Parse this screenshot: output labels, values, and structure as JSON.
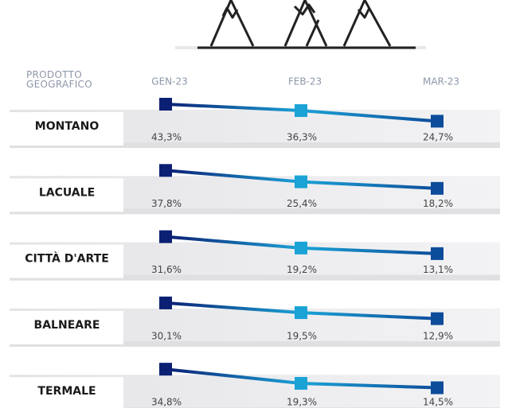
{
  "chart_data": {
    "type": "line",
    "row_header": "PRODOTTO GEOGRAFICO",
    "categories": [
      "GEN-23",
      "FEB-23",
      "MAR-23"
    ],
    "marker_colors": [
      "#0b1f73",
      "#1ba3d6",
      "#0d4c9a"
    ],
    "series": [
      {
        "name": "MONTANO",
        "values": [
          43.3,
          36.3,
          24.7
        ],
        "value_labels": [
          "43,3%",
          "36,3%",
          "24,7%"
        ]
      },
      {
        "name": "LACUALE",
        "values": [
          37.8,
          25.4,
          18.2
        ],
        "value_labels": [
          "37,8%",
          "25,4%",
          "18,2%"
        ]
      },
      {
        "name": "CITTÀ D'ARTE",
        "values": [
          31.6,
          19.2,
          13.1
        ],
        "value_labels": [
          "31,6%",
          "19,2%",
          "13,1%"
        ]
      },
      {
        "name": "BALNEARE",
        "values": [
          30.1,
          19.5,
          12.9
        ],
        "value_labels": [
          "30,1%",
          "19,5%",
          "12,9%"
        ]
      },
      {
        "name": "TERMALE",
        "values": [
          34.8,
          19.3,
          14.5
        ],
        "value_labels": [
          "34,8%",
          "19,3%",
          "14,5%"
        ]
      }
    ]
  }
}
